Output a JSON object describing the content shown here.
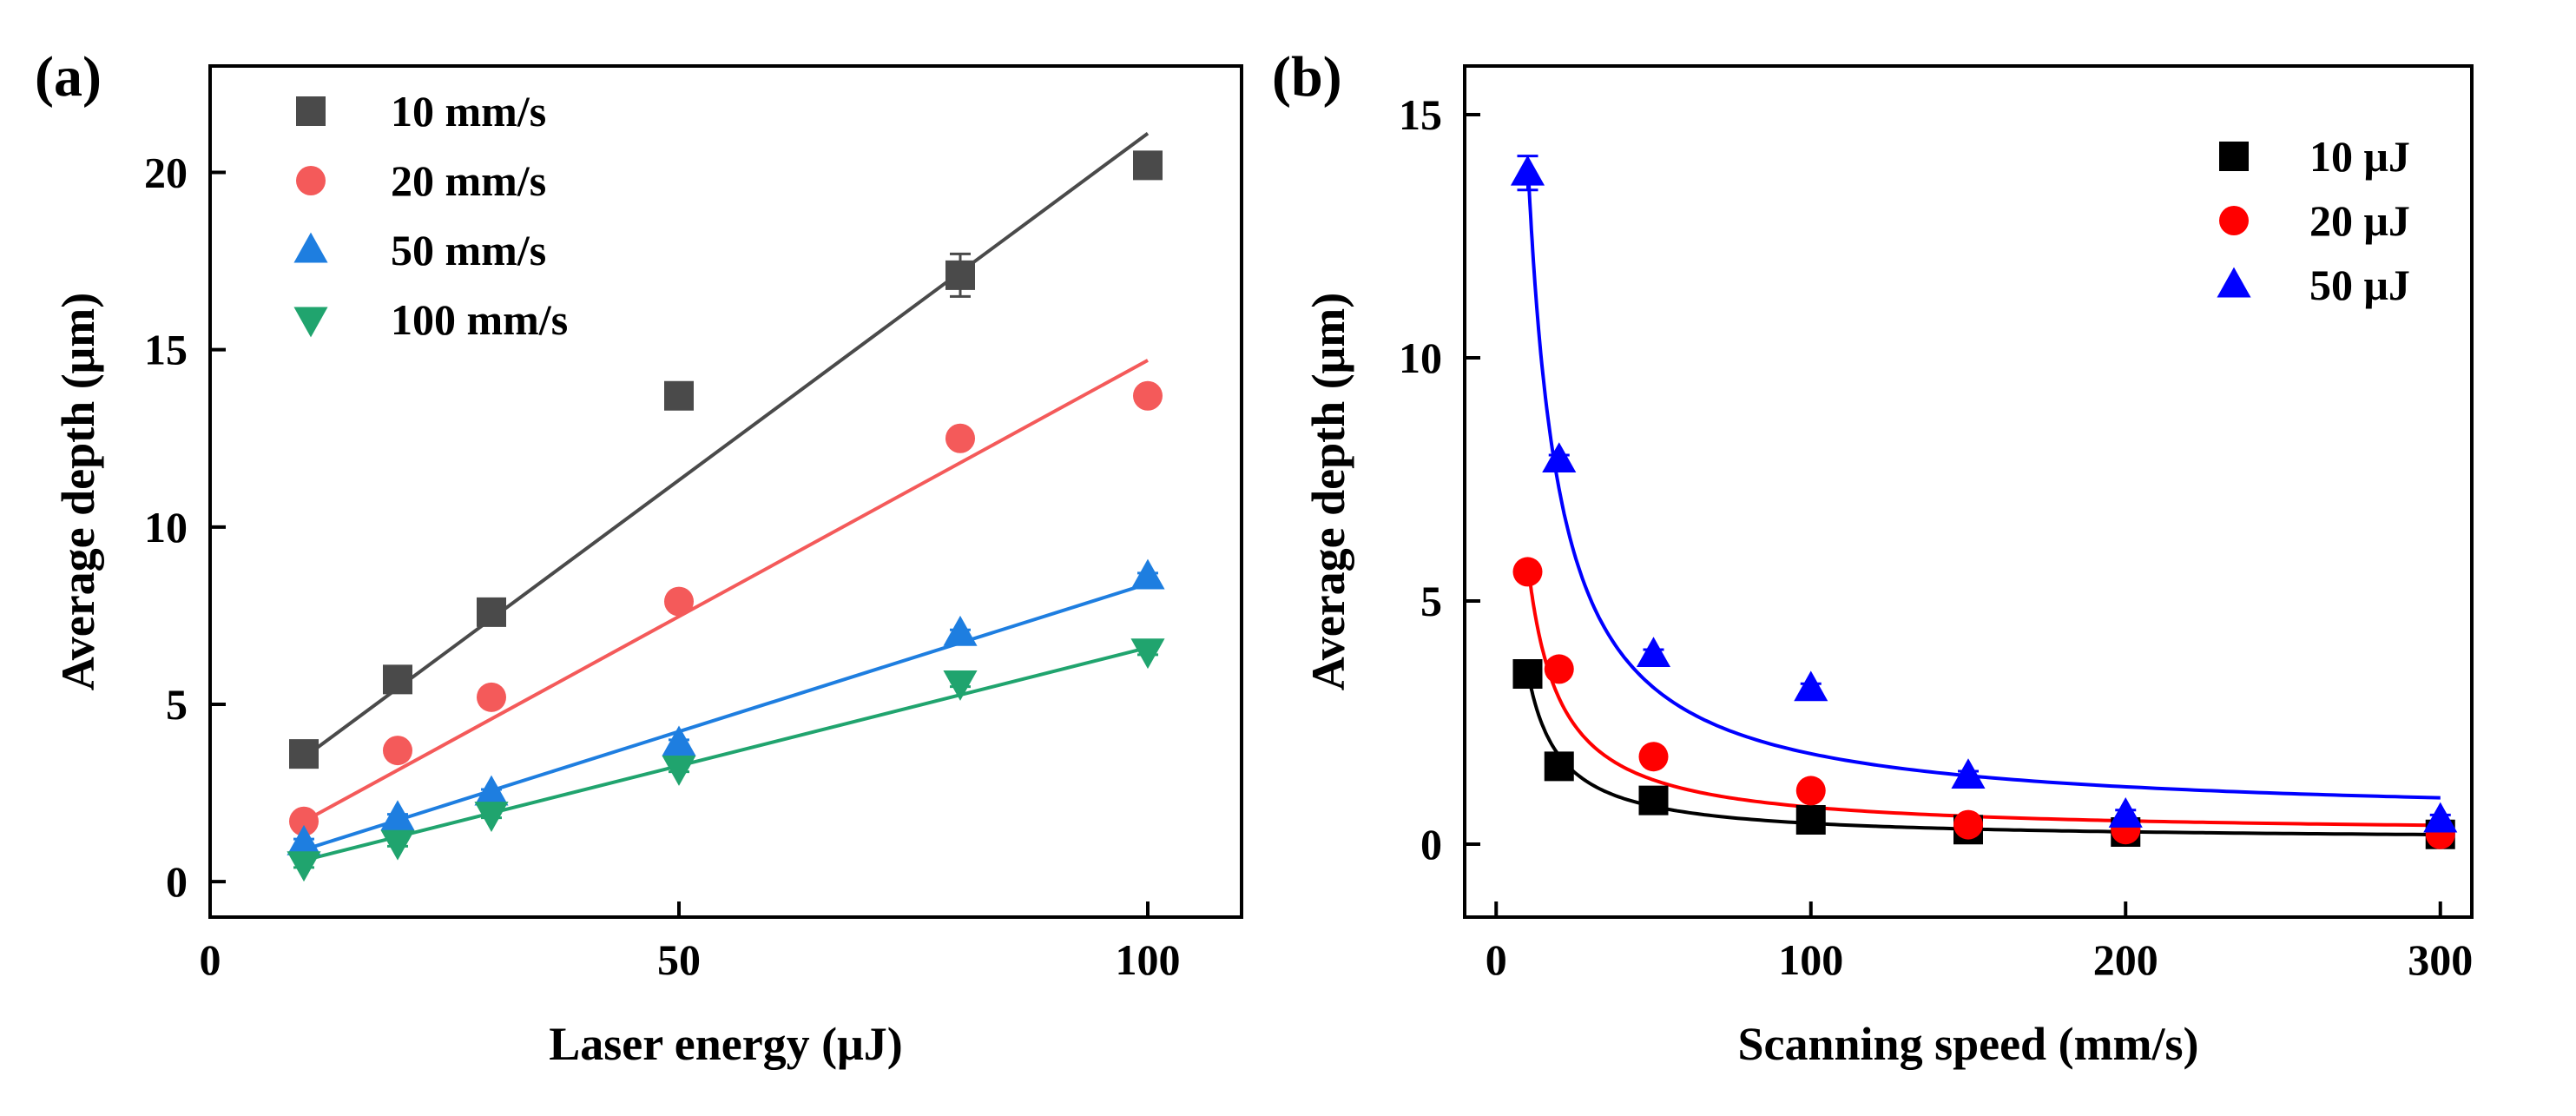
{
  "chart_data": [
    {
      "panel_label": "(a)",
      "type": "scatter",
      "xlabel": "Laser energy (μJ)",
      "ylabel": "Average depth (μm)",
      "xlim": [
        0,
        110
      ],
      "ylim": [
        -1,
        23
      ],
      "xticks": [
        "0",
        "50",
        "100"
      ],
      "xtick_values": [
        0,
        50,
        100
      ],
      "yticks": [
        "0",
        "5",
        "10",
        "15",
        "20"
      ],
      "ytick_values": [
        0,
        5,
        10,
        15,
        20
      ],
      "legend_position": "top-left",
      "fit": "linear",
      "series": [
        {
          "name": "10 mm/s",
          "marker": "square",
          "color": "#4a4a4a",
          "x": [
            10,
            20,
            30,
            50,
            80,
            100
          ],
          "y": [
            3.6,
            5.7,
            7.6,
            13.7,
            17.1,
            20.2
          ],
          "error": [
            0.1,
            0.1,
            0.1,
            0.1,
            0.6,
            0.2
          ],
          "fit_y": [
            3.5,
            21.1
          ]
        },
        {
          "name": "20 mm/s",
          "marker": "circle",
          "color": "#f45a5a",
          "x": [
            10,
            20,
            30,
            50,
            80,
            100
          ],
          "y": [
            1.7,
            3.7,
            5.2,
            7.9,
            12.5,
            13.7
          ],
          "error": [
            0.1,
            0.1,
            0.1,
            0.1,
            0.2,
            0.2
          ],
          "fit_y": [
            1.7,
            14.7
          ]
        },
        {
          "name": "50 mm/s",
          "marker": "triangle-up",
          "color": "#1e7ee0",
          "x": [
            10,
            20,
            30,
            50,
            80,
            100
          ],
          "y": [
            1.1,
            1.8,
            2.5,
            3.9,
            7.0,
            8.6
          ],
          "error": [
            0.1,
            0.1,
            0.1,
            0.1,
            0.1,
            0.1
          ],
          "fit_y": [
            0.9,
            8.4
          ]
        },
        {
          "name": "100 mm/s",
          "marker": "triangle-down",
          "color": "#20a46e",
          "x": [
            10,
            20,
            30,
            50,
            80,
            100
          ],
          "y": [
            0.5,
            1.1,
            1.9,
            3.2,
            5.6,
            6.5
          ],
          "error": [
            0.1,
            0.1,
            0.1,
            0.1,
            0.1,
            0.1
          ],
          "fit_y": [
            0.6,
            6.6
          ]
        }
      ]
    },
    {
      "panel_label": "(b)",
      "type": "scatter",
      "xlabel": "Scanning speed (mm/s)",
      "ylabel": "Average depth (μm)",
      "xlim": [
        -10,
        310
      ],
      "ylim": [
        -1.5,
        16
      ],
      "xticks": [
        "0",
        "100",
        "200",
        "300"
      ],
      "xtick_values": [
        0,
        100,
        200,
        300
      ],
      "yticks": [
        "0",
        "5",
        "10",
        "15"
      ],
      "ytick_values": [
        0,
        5,
        10,
        15
      ],
      "legend_position": "top-right",
      "fit": "inverse",
      "series": [
        {
          "name": "10 μJ",
          "marker": "square",
          "color": "#000000",
          "x": [
            10,
            20,
            50,
            100,
            150,
            200,
            300
          ],
          "y": [
            3.5,
            1.6,
            0.9,
            0.5,
            0.3,
            0.25,
            0.2
          ],
          "error": [
            0.1,
            0.1,
            0.1,
            0.1,
            0.1,
            0.1,
            0.1
          ],
          "fit_a": 34.8,
          "fit_b": 0.08
        },
        {
          "name": "20 μJ",
          "marker": "circle",
          "color": "#ff0000",
          "x": [
            10,
            20,
            50,
            100,
            150,
            200,
            300
          ],
          "y": [
            5.6,
            3.6,
            1.8,
            1.1,
            0.4,
            0.3,
            0.2
          ],
          "error": [
            0.1,
            0.1,
            0.1,
            0.1,
            0.1,
            0.1,
            0.1
          ],
          "fit_a": 56.0,
          "fit_b": 0.2
        },
        {
          "name": "50 μJ",
          "marker": "triangle-up",
          "color": "#0000ff",
          "x": [
            10,
            20,
            50,
            100,
            150,
            200,
            300
          ],
          "y": [
            13.8,
            7.9,
            3.9,
            3.2,
            1.4,
            0.6,
            0.5
          ],
          "error": [
            0.35,
            0.1,
            0.1,
            0.1,
            0.1,
            0.1,
            0.1
          ],
          "fit_a": 136.0,
          "fit_b": 0.5
        }
      ]
    }
  ]
}
